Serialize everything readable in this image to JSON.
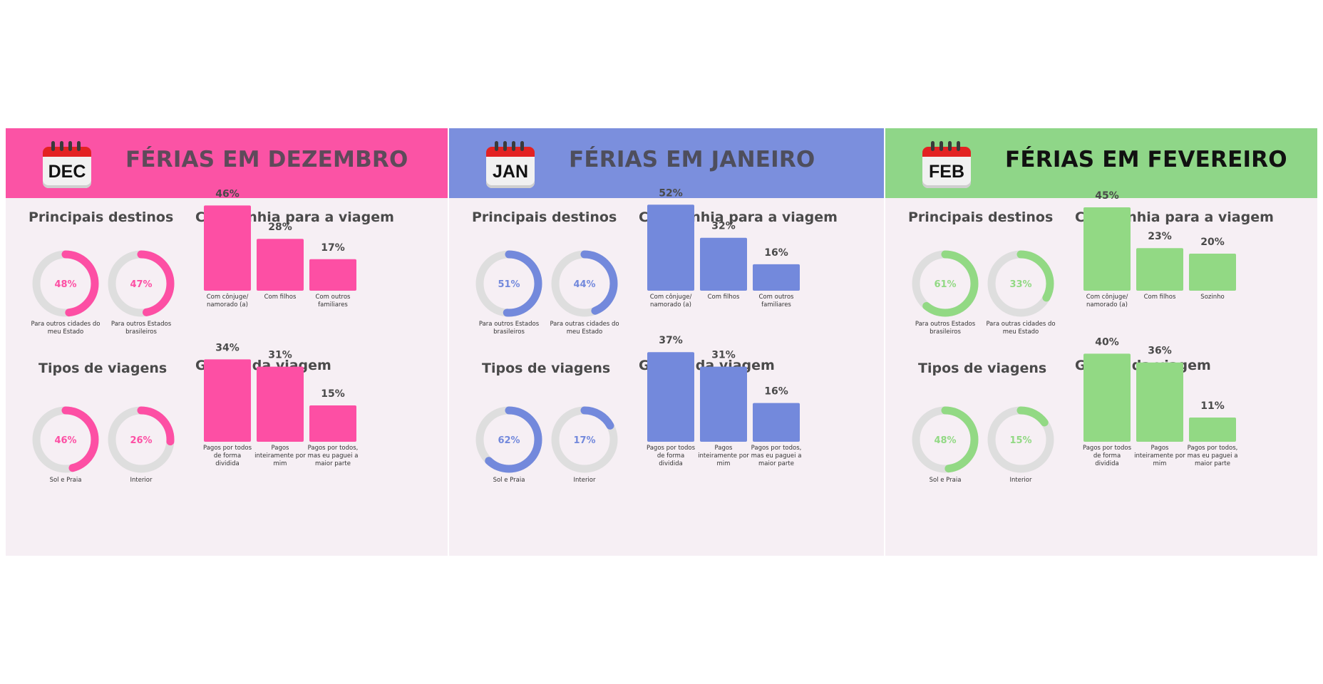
{
  "panels": [
    {
      "month_abbr": "DEC",
      "title": "FÉRIAS EM DEZEMBRO",
      "header_color": "#fb53a5",
      "title_color": "#5e4a5a",
      "accent": "#fd4fa4",
      "sections": {
        "destinos": "Principais destinos",
        "companhia": "Companhia para a viagem",
        "tipos": "Tipos de viagens",
        "gastos": "Gastos da viagem"
      },
      "donuts_destinos": [
        {
          "value": 48,
          "label": "48%",
          "caption": "Para outros cidades do\nmeu Estado"
        },
        {
          "value": 47,
          "label": "47%",
          "caption": "Para outros Estados\nbrasileiros"
        }
      ],
      "donuts_tipos": [
        {
          "value": 46,
          "label": "46%",
          "caption": "Sol e Praia"
        },
        {
          "value": 26,
          "label": "26%",
          "caption": "Interior"
        }
      ]
    },
    {
      "month_abbr": "JAN",
      "title": "FÉRIAS EM JANEIRO",
      "header_color": "#7b8fdd",
      "title_color": "#4e4e5c",
      "accent": "#7389dc",
      "sections": {
        "destinos": "Principais destinos",
        "companhia": "Companhia para a viagem",
        "tipos": "Tipos de viagens",
        "gastos": "Gastos da viagem"
      },
      "donuts_destinos": [
        {
          "value": 51,
          "label": "51%",
          "caption": "Para outros Estados\nbrasileiros"
        },
        {
          "value": 44,
          "label": "44%",
          "caption": "Para outras cidades do\nmeu Estado"
        }
      ],
      "donuts_tipos": [
        {
          "value": 62,
          "label": "62%",
          "caption": "Sol e Praia"
        },
        {
          "value": 17,
          "label": "17%",
          "caption": "Interior"
        }
      ]
    },
    {
      "month_abbr": "FEB",
      "title": "FÉRIAS EM FEVEREIRO",
      "header_color": "#8fd688",
      "title_color": "#111111",
      "accent": "#92d984",
      "sections": {
        "destinos": "Principais destinos",
        "companhia": "Companhia para a viagem",
        "tipos": "Tipos de viagens",
        "gastos": "Gastos da viagem"
      },
      "donuts_destinos": [
        {
          "value": 61,
          "label": "61%",
          "caption": "Para outros Estados\nbrasileiros"
        },
        {
          "value": 33,
          "label": "33%",
          "caption": "Para outras cidades do\nmeu Estado"
        }
      ],
      "donuts_tipos": [
        {
          "value": 48,
          "label": "48%",
          "caption": "Sol e Praia"
        },
        {
          "value": 15,
          "label": "15%",
          "caption": "Interior"
        }
      ]
    }
  ],
  "chart_data": [
    {
      "type": "bar",
      "title": "Companhia para a viagem",
      "categories": [
        "Com cônjuge/\nnamorado (a)",
        "Com filhos",
        "Com outros\nfamiliares"
      ],
      "values": [
        46,
        28,
        17
      ],
      "labels": [
        "46%",
        "28%",
        "17%"
      ],
      "ylim": [
        0,
        50
      ]
    },
    {
      "type": "bar",
      "title": "Gastos da viagem",
      "categories": [
        "Pagos por todos\nde forma\ndividida",
        "Pagos\ninteiramente por\nmim",
        "Pagos por todos,\nmas eu paguei a\nmaior parte"
      ],
      "values": [
        34,
        31,
        15
      ],
      "labels": [
        "34%",
        "31%",
        "15%"
      ],
      "ylim": [
        0,
        40
      ]
    },
    {
      "type": "bar",
      "title": "Companhia para a viagem",
      "categories": [
        "Com cônjuge/\nnamorado (a)",
        "Com filhos",
        "Com outros\nfamiliares"
      ],
      "values": [
        52,
        32,
        16
      ],
      "labels": [
        "52%",
        "32%",
        "16%"
      ],
      "ylim": [
        0,
        56
      ]
    },
    {
      "type": "bar",
      "title": "Gastos da viagem",
      "categories": [
        "Pagos por todos\nde forma\ndividida",
        "Pagos\ninteiramente por\nmim",
        "Pagos por todos,\nmas eu paguei a\nmaior parte"
      ],
      "values": [
        37,
        31,
        16
      ],
      "labels": [
        "37%",
        "31%",
        "16%"
      ],
      "ylim": [
        0,
        40
      ]
    },
    {
      "type": "bar",
      "title": "Companhia para a viagem",
      "categories": [
        "Com cônjuge/\nnamorado (a)",
        "Com filhos",
        "Sozinho"
      ],
      "values": [
        45,
        23,
        20
      ],
      "labels": [
        "45%",
        "23%",
        "20%"
      ],
      "ylim": [
        0,
        50
      ]
    },
    {
      "type": "bar",
      "title": "Gastos da viagem",
      "categories": [
        "Pagos por todos\nde forma\ndividida",
        "Pagos\ninteiramente por\nmim",
        "Pagos por todos,\nmas eu paguei a\nmaior parte"
      ],
      "values": [
        40,
        36,
        11
      ],
      "labels": [
        "40%",
        "36%",
        "11%"
      ],
      "ylim": [
        0,
        44
      ]
    }
  ]
}
